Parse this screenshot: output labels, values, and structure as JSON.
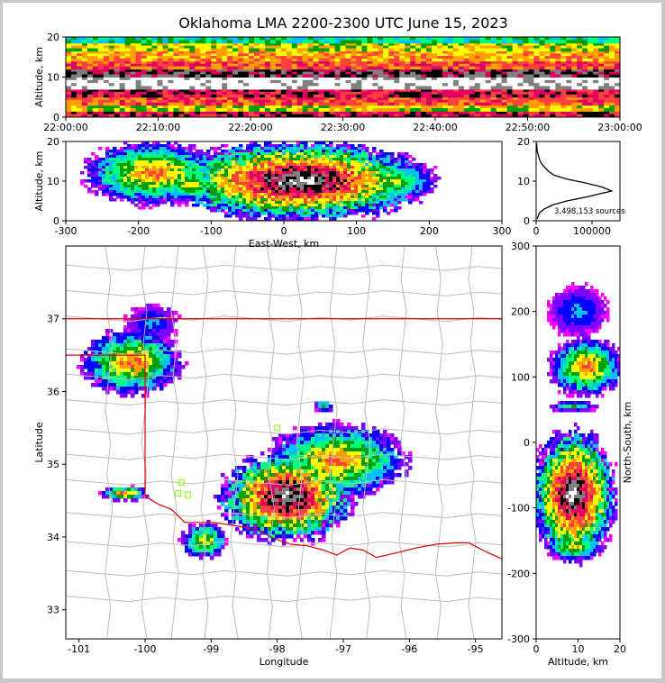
{
  "title": "Oklahoma LMA 2200-2300 UTC June 15, 2023",
  "colors": {
    "density_scale": [
      "#ff00ff",
      "#8000ff",
      "#0000ff",
      "#00c0ff",
      "#00ff80",
      "#00a000",
      "#ffff00",
      "#ffa000",
      "#ff4040",
      "#e00060",
      "#000000",
      "#808080",
      "#ffffff"
    ],
    "state_border": "#e00000",
    "county_lines": "#bdbdbd",
    "stations": "#80ff00",
    "profile_line": "#000000"
  },
  "chart_data": [
    {
      "id": "time-height",
      "type": "heatmap",
      "xlabel": "",
      "ylabel": "Altitude, km",
      "ylim": [
        0,
        20
      ],
      "yticks": [
        "0",
        "10",
        "20"
      ],
      "xlim": [
        "22:00:00",
        "23:00:00"
      ],
      "xticks": [
        "22:00:00",
        "22:10:00",
        "22:20:00",
        "22:30:00",
        "22:40:00",
        "22:50:00",
        "23:00:00"
      ],
      "layers": [
        {
          "alt": [
            0,
            1.5
          ],
          "level": 9
        },
        {
          "alt": [
            1.5,
            3
          ],
          "level": 6
        },
        {
          "alt": [
            3,
            5
          ],
          "level": 8
        },
        {
          "alt": [
            5,
            7
          ],
          "level": 9
        },
        {
          "alt": [
            7,
            10
          ],
          "level": 12
        },
        {
          "alt": [
            10,
            12
          ],
          "level": 10
        },
        {
          "alt": [
            12,
            14
          ],
          "level": 8
        },
        {
          "alt": [
            14,
            16.5
          ],
          "level": 7
        },
        {
          "alt": [
            16.5,
            18.5
          ],
          "level": 6
        },
        {
          "alt": [
            18.5,
            20
          ],
          "level": 4
        }
      ]
    },
    {
      "id": "east-west-altitude",
      "type": "heatmap",
      "xlabel": "East-West, km",
      "ylabel": "Altitude, km",
      "xlim": [
        -300,
        300
      ],
      "xticks": [
        "-300",
        "-200",
        "-100",
        "0",
        "100",
        "200",
        "300"
      ],
      "ylim": [
        0,
        20
      ],
      "yticks": [
        "0",
        "10",
        "20"
      ],
      "blobs": [
        {
          "x": -180,
          "z": 12,
          "rx": 95,
          "rz": 8,
          "peak": 8
        },
        {
          "x": -130,
          "z": 9,
          "rx": 40,
          "rz": 4,
          "peak": 7
        },
        {
          "x": 20,
          "z": 10,
          "rx": 180,
          "rz": 10,
          "peak": 12
        },
        {
          "x": 150,
          "z": 10,
          "rx": 60,
          "rz": 5,
          "peak": 6
        }
      ]
    },
    {
      "id": "altitude-histogram",
      "type": "line",
      "xlim": [
        0,
        150000
      ],
      "xticks": [
        "0",
        "100000"
      ],
      "ylim": [
        0,
        20
      ],
      "yticks": [
        "0",
        "10",
        "20"
      ],
      "annotation": "3,498,153 sources",
      "x": [
        2000,
        3000,
        6000,
        15000,
        30000,
        55000,
        90000,
        135000,
        118000,
        90000,
        55000,
        32000,
        22000,
        15000,
        9000,
        6000,
        4000,
        2000,
        800
      ],
      "y": [
        0.5,
        1,
        2,
        3,
        4,
        5,
        6,
        7.5,
        8.5,
        9.5,
        10.5,
        11.5,
        12.5,
        13.5,
        14.5,
        15.5,
        16.5,
        17.5,
        19.5
      ]
    },
    {
      "id": "plan-view",
      "type": "heatmap",
      "xlabel": "Longitude",
      "ylabel": "Latitude",
      "xlim": [
        -101.2,
        -94.6
      ],
      "xticks": [
        "-101",
        "-100",
        "-99",
        "-98",
        "-97",
        "-96",
        "-95"
      ],
      "ylim": [
        32.6,
        38
      ],
      "yticks": [
        "33",
        "34",
        "35",
        "36",
        "37"
      ],
      "blobs": [
        {
          "lon": -100.2,
          "lat": 36.4,
          "rx": 0.75,
          "ry": 0.45,
          "peak": 8
        },
        {
          "lon": -99.9,
          "lat": 36.95,
          "rx": 0.4,
          "ry": 0.25,
          "peak": 3
        },
        {
          "lon": -100.3,
          "lat": 34.6,
          "rx": 0.35,
          "ry": 0.1,
          "peak": 8
        },
        {
          "lon": -99.1,
          "lat": 33.95,
          "rx": 0.35,
          "ry": 0.25,
          "peak": 7
        },
        {
          "lon": -97.85,
          "lat": 34.55,
          "rx": 1.0,
          "ry": 0.6,
          "peak": 12
        },
        {
          "lon": -97.1,
          "lat": 35.05,
          "rx": 1.05,
          "ry": 0.5,
          "peak": 8
        },
        {
          "lon": -97.3,
          "lat": 35.8,
          "rx": 0.15,
          "ry": 0.08,
          "peak": 5
        }
      ]
    },
    {
      "id": "north-south-altitude",
      "type": "heatmap",
      "xlabel": "Altitude, km",
      "ylabel": "North-South, km",
      "xlim": [
        0,
        20
      ],
      "xticks": [
        "0",
        "10",
        "20"
      ],
      "ylim": [
        -300,
        300
      ],
      "yticks": [
        "-300",
        "-200",
        "-100",
        "0",
        "100",
        "200",
        "300"
      ],
      "blobs": [
        {
          "alt": 12,
          "y": 115,
          "ra": 9,
          "ry": 45,
          "peak": 8
        },
        {
          "alt": 10,
          "y": 200,
          "ra": 7,
          "ry": 40,
          "peak": 3
        },
        {
          "alt": 9,
          "y": -80,
          "ra": 10,
          "ry": 100,
          "peak": 12
        },
        {
          "alt": 9,
          "y": -160,
          "ra": 7,
          "ry": 20,
          "peak": 7
        },
        {
          "alt": 9,
          "y": 55,
          "ra": 6,
          "ry": 8,
          "peak": 5
        }
      ]
    }
  ]
}
